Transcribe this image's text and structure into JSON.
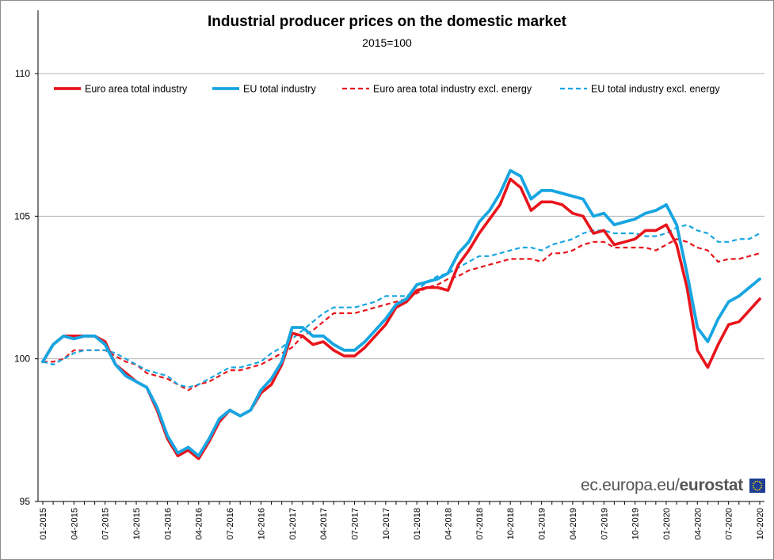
{
  "chart_data": {
    "type": "line",
    "title": "Industrial producer prices on the domestic market",
    "subtitle": "2015=100",
    "ylim": [
      95,
      110
    ],
    "yticks": [
      95,
      100,
      105,
      110
    ],
    "grid": true,
    "legend_position": "top",
    "x": [
      "01-2015",
      "02-2015",
      "03-2015",
      "04-2015",
      "05-2015",
      "06-2015",
      "07-2015",
      "08-2015",
      "09-2015",
      "10-2015",
      "11-2015",
      "12-2015",
      "01-2016",
      "02-2016",
      "03-2016",
      "04-2016",
      "05-2016",
      "06-2016",
      "07-2016",
      "08-2016",
      "09-2016",
      "10-2016",
      "11-2016",
      "12-2016",
      "01-2017",
      "02-2017",
      "03-2017",
      "04-2017",
      "05-2017",
      "06-2017",
      "07-2017",
      "08-2017",
      "09-2017",
      "10-2017",
      "11-2017",
      "12-2017",
      "01-2018",
      "02-2018",
      "03-2018",
      "04-2018",
      "05-2018",
      "06-2018",
      "07-2018",
      "08-2018",
      "09-2018",
      "10-2018",
      "11-2018",
      "12-2018",
      "01-2019",
      "02-2019",
      "03-2019",
      "04-2019",
      "05-2019",
      "06-2019",
      "07-2019",
      "08-2019",
      "09-2019",
      "10-2019",
      "11-2019",
      "12-2019",
      "01-2020",
      "02-2020",
      "03-2020",
      "04-2020",
      "05-2020",
      "06-2020",
      "07-2020",
      "08-2020",
      "09-2020",
      "10-2020"
    ],
    "xtick_labels": [
      "01-2015",
      "04-2015",
      "07-2015",
      "10-2015",
      "01-2016",
      "04-2016",
      "07-2016",
      "10-2016",
      "01-2017",
      "04-2017",
      "07-2017",
      "10-2017",
      "01-2018",
      "04-2018",
      "07-2018",
      "10-2018",
      "01-2019",
      "04-2019",
      "07-2019",
      "10-2019",
      "01-2020",
      "04-2020",
      "07-2020",
      "10-2020"
    ],
    "series": [
      {
        "name": "Euro area total industry",
        "color": "#e8141b",
        "style": "solid",
        "values": [
          99.9,
          100.5,
          100.8,
          100.8,
          100.8,
          100.8,
          100.6,
          99.8,
          99.5,
          99.2,
          99.0,
          98.2,
          97.2,
          96.6,
          96.8,
          96.5,
          97.1,
          97.8,
          98.2,
          98.0,
          98.2,
          98.8,
          99.1,
          99.8,
          100.9,
          100.8,
          100.5,
          100.6,
          100.3,
          100.1,
          100.1,
          100.4,
          100.8,
          101.2,
          101.8,
          102.0,
          102.4,
          102.5,
          102.5,
          102.4,
          103.3,
          103.8,
          104.4,
          104.9,
          105.4,
          106.3,
          106.0,
          105.2,
          105.5,
          105.5,
          105.4,
          105.1,
          105.0,
          104.4,
          104.5,
          104.0,
          104.1,
          104.2,
          104.5,
          104.5,
          104.7,
          104.0,
          102.5,
          100.3,
          99.7,
          100.5,
          101.2,
          101.3,
          101.7,
          102.1
        ]
      },
      {
        "name": "EU total industry",
        "color": "#17a5e1",
        "style": "solid",
        "values": [
          99.9,
          100.5,
          100.8,
          100.7,
          100.8,
          100.8,
          100.5,
          99.8,
          99.4,
          99.2,
          99.0,
          98.3,
          97.3,
          96.7,
          96.9,
          96.6,
          97.2,
          97.9,
          98.2,
          98.0,
          98.2,
          98.9,
          99.3,
          99.9,
          101.1,
          101.1,
          100.8,
          100.8,
          100.5,
          100.3,
          100.3,
          100.6,
          101.0,
          101.4,
          101.9,
          102.1,
          102.6,
          102.7,
          102.8,
          103.0,
          103.7,
          104.1,
          104.8,
          105.2,
          105.8,
          106.6,
          106.4,
          105.6,
          105.9,
          105.9,
          105.8,
          105.7,
          105.6,
          105.0,
          105.1,
          104.7,
          104.8,
          104.9,
          105.1,
          105.2,
          105.4,
          104.7,
          103.0,
          101.1,
          100.6,
          101.4,
          102.0,
          102.2,
          102.5,
          102.8
        ]
      },
      {
        "name": "Euro area total industry excl. energy",
        "color": "#e8141b",
        "style": "dashed",
        "values": [
          99.9,
          99.9,
          100.0,
          100.3,
          100.3,
          100.3,
          100.3,
          100.1,
          99.9,
          99.8,
          99.5,
          99.4,
          99.3,
          99.1,
          98.9,
          99.1,
          99.2,
          99.4,
          99.6,
          99.6,
          99.7,
          99.8,
          100.0,
          100.2,
          100.4,
          100.8,
          101.0,
          101.3,
          101.6,
          101.6,
          101.6,
          101.7,
          101.8,
          101.9,
          102.0,
          102.1,
          102.3,
          102.5,
          102.6,
          102.8,
          102.9,
          103.1,
          103.2,
          103.3,
          103.4,
          103.5,
          103.5,
          103.5,
          103.4,
          103.7,
          103.7,
          103.8,
          104.0,
          104.1,
          104.1,
          103.9,
          103.9,
          103.9,
          103.9,
          103.8,
          104.0,
          104.2,
          104.1,
          103.9,
          103.8,
          103.4,
          103.5,
          103.5,
          103.6,
          103.7
        ]
      },
      {
        "name": "EU total industry excl. energy",
        "color": "#17a5e1",
        "style": "dashed",
        "values": [
          99.9,
          99.8,
          100.0,
          100.2,
          100.3,
          100.3,
          100.3,
          100.2,
          100.0,
          99.8,
          99.6,
          99.5,
          99.4,
          99.1,
          99.0,
          99.1,
          99.3,
          99.5,
          99.7,
          99.7,
          99.8,
          99.9,
          100.2,
          100.4,
          100.7,
          101.0,
          101.3,
          101.6,
          101.8,
          101.8,
          101.8,
          101.9,
          102.0,
          102.2,
          102.2,
          102.2,
          102.4,
          102.7,
          102.9,
          103.0,
          103.2,
          103.4,
          103.6,
          103.6,
          103.7,
          103.8,
          103.9,
          103.9,
          103.8,
          104.0,
          104.1,
          104.2,
          104.4,
          104.5,
          104.5,
          104.4,
          104.4,
          104.4,
          104.3,
          104.3,
          104.4,
          104.6,
          104.7,
          104.5,
          104.4,
          104.1,
          104.1,
          104.2,
          104.2,
          104.4
        ]
      }
    ]
  },
  "branding": {
    "site": "ec.europa.eu/",
    "name": "eurostat"
  }
}
